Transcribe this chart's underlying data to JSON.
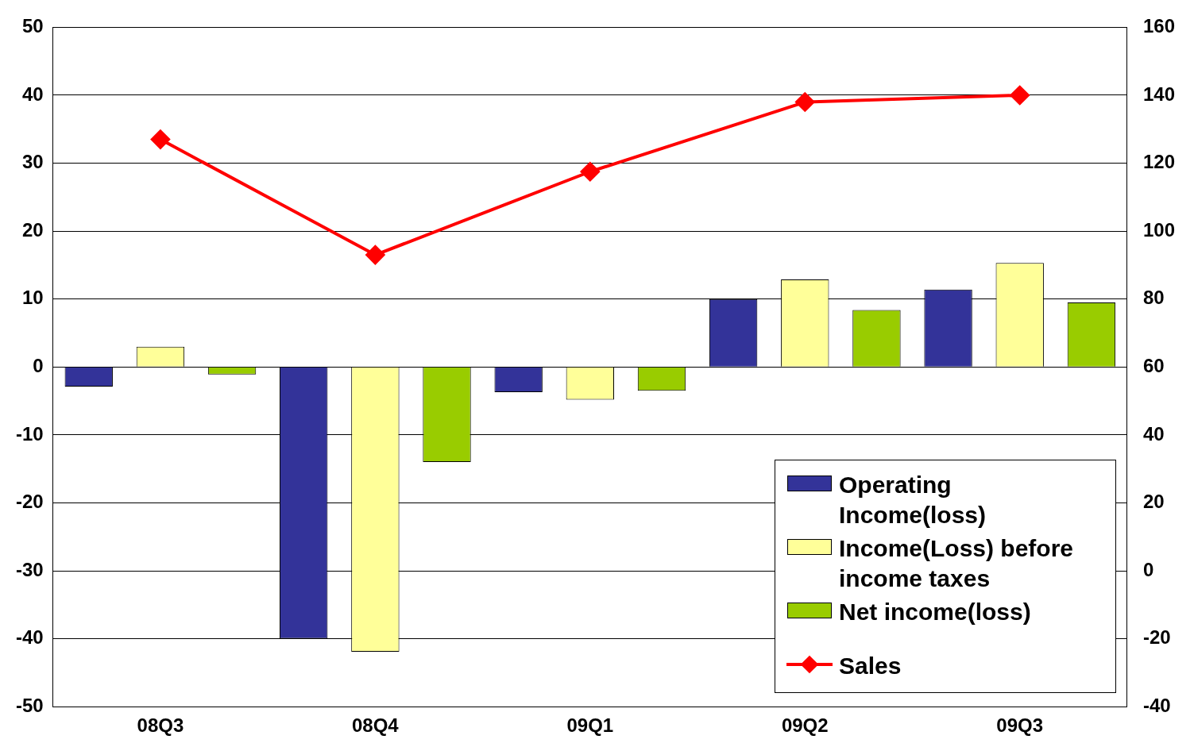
{
  "chart_data": {
    "type": "bar",
    "categories": [
      "08Q3",
      "08Q4",
      "09Q1",
      "09Q2",
      "09Q3"
    ],
    "series": [
      {
        "name": "Operating Income(loss)",
        "color": "#333399",
        "values": [
          -2.9,
          -40,
          -3.7,
          10,
          11.4
        ]
      },
      {
        "name": "Income(Loss) before income taxes",
        "color": "#ffff99",
        "values": [
          3,
          -41.9,
          -4.8,
          12.9,
          15.3
        ]
      },
      {
        "name": "Net income(loss)",
        "color": "#99cc00",
        "values": [
          -1.1,
          -14,
          -3.5,
          8.4,
          9.5
        ]
      },
      {
        "name": "Sales",
        "type": "line",
        "axis": "y2",
        "color": "#ff0000",
        "marker": "diamond",
        "values": [
          127,
          93,
          117.5,
          138,
          140
        ]
      }
    ],
    "ylim": [
      -50,
      50
    ],
    "yticks": [
      -50,
      -40,
      -30,
      -20,
      -10,
      0,
      10,
      20,
      30,
      40,
      50
    ],
    "y2lim": [
      -40,
      160
    ],
    "y2ticks": [
      -40,
      -20,
      0,
      20,
      40,
      60,
      80,
      100,
      120,
      140,
      160
    ],
    "grid": "y",
    "legend": "bottom right"
  }
}
